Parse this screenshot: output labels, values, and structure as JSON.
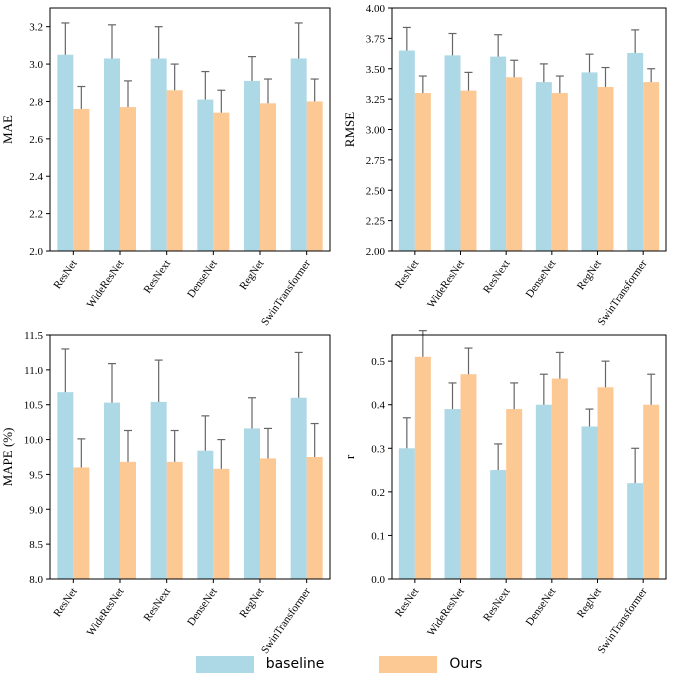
{
  "colors": {
    "baseline": "#add8e6",
    "ours": "#fcc894",
    "error_bar": "#666666",
    "axis": "#000000"
  },
  "legend": {
    "baseline_label": "baseline",
    "ours_label": "Ours"
  },
  "chart_data": [
    {
      "type": "bar",
      "id": "mae",
      "ylabel": "MAE",
      "xlabel": "",
      "categories": [
        "ResNet",
        "WideResNet",
        "ResNext",
        "DenseNet",
        "RegNet",
        "SwinTransformer"
      ],
      "ylim": [
        2.0,
        3.3
      ],
      "yticks": [
        2.0,
        2.2,
        2.4,
        2.6,
        2.8,
        3.0,
        3.2
      ],
      "tick_decimals": 1,
      "series": [
        {
          "name": "baseline",
          "values": [
            3.05,
            3.03,
            3.03,
            2.81,
            2.91,
            3.03
          ],
          "errors": [
            0.17,
            0.18,
            0.17,
            0.15,
            0.13,
            0.19
          ]
        },
        {
          "name": "Ours",
          "values": [
            2.76,
            2.77,
            2.86,
            2.74,
            2.79,
            2.8
          ],
          "errors": [
            0.12,
            0.14,
            0.14,
            0.12,
            0.13,
            0.12
          ]
        }
      ]
    },
    {
      "type": "bar",
      "id": "rmse",
      "ylabel": "RMSE",
      "xlabel": "",
      "categories": [
        "ResNet",
        "WideResNet",
        "ResNext",
        "DenseNet",
        "RegNet",
        "SwinTransformer"
      ],
      "ylim": [
        2.0,
        4.0
      ],
      "yticks": [
        2.0,
        2.25,
        2.5,
        2.75,
        3.0,
        3.25,
        3.5,
        3.75,
        4.0
      ],
      "tick_decimals": 2,
      "series": [
        {
          "name": "baseline",
          "values": [
            3.65,
            3.61,
            3.6,
            3.39,
            3.47,
            3.63
          ],
          "errors": [
            0.19,
            0.18,
            0.18,
            0.15,
            0.15,
            0.19
          ]
        },
        {
          "name": "Ours",
          "values": [
            3.3,
            3.32,
            3.43,
            3.3,
            3.35,
            3.39
          ],
          "errors": [
            0.14,
            0.15,
            0.14,
            0.14,
            0.16,
            0.11
          ]
        }
      ]
    },
    {
      "type": "bar",
      "id": "mape",
      "ylabel": "MAPE (%)",
      "xlabel": "",
      "categories": [
        "ResNet",
        "WideResNet",
        "ResNext",
        "DenseNet",
        "RegNet",
        "SwinTransformer"
      ],
      "ylim": [
        8.0,
        11.5
      ],
      "yticks": [
        8.0,
        8.5,
        9.0,
        9.5,
        10.0,
        10.5,
        11.0,
        11.5
      ],
      "tick_decimals": 1,
      "series": [
        {
          "name": "baseline",
          "values": [
            10.68,
            10.53,
            10.54,
            9.84,
            10.16,
            10.6
          ],
          "errors": [
            0.62,
            0.56,
            0.6,
            0.5,
            0.44,
            0.65
          ]
        },
        {
          "name": "Ours",
          "values": [
            9.6,
            9.68,
            9.68,
            9.58,
            9.73,
            9.75
          ],
          "errors": [
            0.41,
            0.45,
            0.45,
            0.42,
            0.43,
            0.48
          ]
        }
      ]
    },
    {
      "type": "bar",
      "id": "r",
      "ylabel": "r",
      "xlabel": "",
      "categories": [
        "ResNet",
        "WideResNet",
        "ResNext",
        "DenseNet",
        "RegNet",
        "SwinTransformer"
      ],
      "ylim": [
        0.0,
        0.56
      ],
      "yticks": [
        0.0,
        0.1,
        0.2,
        0.3,
        0.4,
        0.5
      ],
      "tick_decimals": 1,
      "series": [
        {
          "name": "baseline",
          "values": [
            0.3,
            0.39,
            0.25,
            0.4,
            0.35,
            0.22
          ],
          "errors": [
            0.07,
            0.06,
            0.06,
            0.07,
            0.04,
            0.08
          ]
        },
        {
          "name": "Ours",
          "values": [
            0.51,
            0.47,
            0.39,
            0.46,
            0.44,
            0.4
          ],
          "errors": [
            0.06,
            0.06,
            0.06,
            0.06,
            0.06,
            0.07
          ]
        }
      ]
    }
  ]
}
